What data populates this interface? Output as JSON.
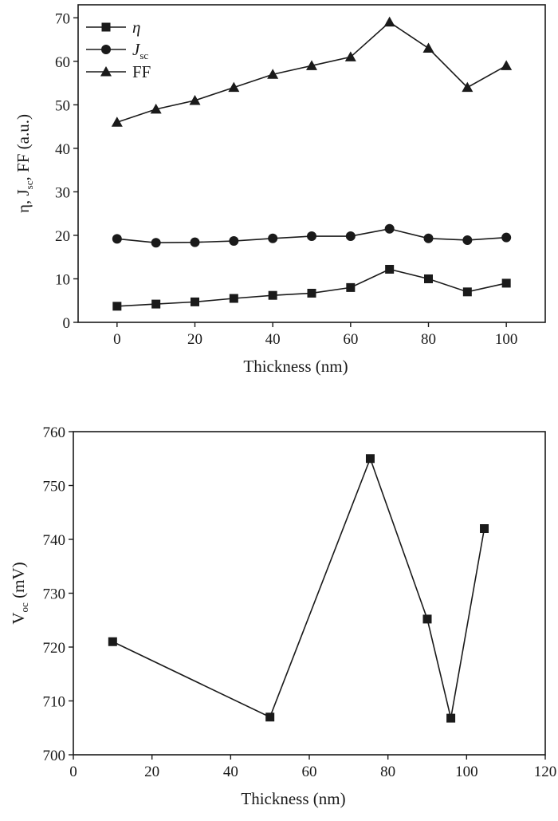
{
  "chart_data": [
    {
      "type": "line",
      "xlabel": "Thickness (nm)",
      "ylabel": {
        "main": "η, J",
        "sub": "sc",
        "rest": ", FF (a.u.)"
      },
      "xlim": [
        -10,
        110
      ],
      "ylim": [
        0,
        73
      ],
      "xticks": [
        0,
        20,
        40,
        60,
        80,
        100
      ],
      "yticks": [
        0,
        10,
        20,
        30,
        40,
        50,
        60,
        70
      ],
      "legend_position": "top-left",
      "x": [
        0,
        10,
        20,
        30,
        40,
        50,
        60,
        70,
        80,
        90,
        100
      ],
      "series": [
        {
          "name": "η",
          "name_sub": "",
          "marker": "square",
          "values": [
            3.7,
            4.2,
            4.7,
            5.5,
            6.2,
            6.7,
            8.0,
            12.2,
            10.0,
            7.0,
            9.0
          ]
        },
        {
          "name": "J",
          "name_sub": "sc",
          "marker": "circle",
          "values": [
            19.2,
            18.3,
            18.4,
            18.7,
            19.3,
            19.8,
            19.8,
            21.5,
            19.3,
            18.9,
            19.5
          ]
        },
        {
          "name": "FF",
          "name_sub": "",
          "marker": "triangle",
          "values": [
            46,
            49,
            51,
            54,
            57,
            59,
            61,
            69,
            63,
            54,
            59
          ]
        }
      ]
    },
    {
      "type": "line",
      "xlabel": "Thickness (nm)",
      "ylabel": {
        "main": "V",
        "sub": "oc",
        "rest": " (mV)"
      },
      "xlim": [
        0,
        120
      ],
      "ylim": [
        700,
        760
      ],
      "xticks": [
        0,
        20,
        40,
        60,
        80,
        100,
        120
      ],
      "yticks": [
        700,
        710,
        720,
        730,
        740,
        750,
        760
      ],
      "series": [
        {
          "name": "",
          "marker": "square",
          "x": [
            10,
            50,
            75.5,
            90,
            96,
            104.5
          ],
          "values": [
            721,
            707,
            755,
            725.2,
            706.8,
            742
          ]
        }
      ]
    }
  ]
}
